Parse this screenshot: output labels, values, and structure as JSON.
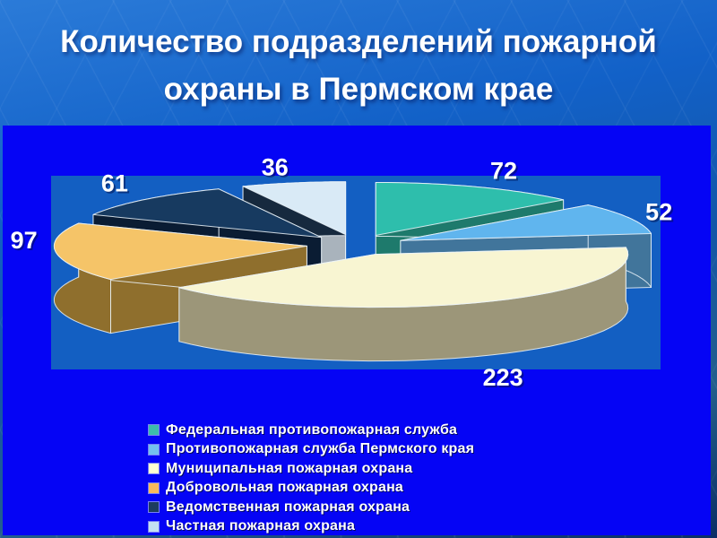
{
  "slide": {
    "title": "Количество подразделений пожарной охраны в Пермском крае"
  },
  "chart_data": {
    "type": "pie",
    "title": "Количество подразделений пожарной охраны в Пермском крае",
    "style": "3d-exploded-pie",
    "legend_position": "bottom-left",
    "data_labels": "values-outside",
    "background_colors": {
      "slide_blue": "#0504f5",
      "plot_blue": "#135fc2",
      "header_blue": "#1261c8"
    },
    "series": [
      {
        "label": "Федеральная противопожарная служба",
        "value": 72,
        "top_color": "#2ebeac",
        "side_color": "#1e7a6c",
        "legend_color": "#3dbcac"
      },
      {
        "label": "Противопожарная служба Пермского края",
        "value": 52,
        "top_color": "#60b5ee",
        "side_color": "#41759b",
        "legend_color": "#74c0ee"
      },
      {
        "label": "Муниципальная пожарная охрана",
        "value": 223,
        "top_color": "#f8f5d2",
        "side_color": "#9c9679",
        "legend_color": "#ffffd2"
      },
      {
        "label": "Добровольная пожарная охрана",
        "value": 97,
        "top_color": "#f5c468",
        "side_color": "#8f6f2d",
        "legend_color": "#f9ba5c"
      },
      {
        "label": "Ведомственная пожарная охрана",
        "value": 61,
        "top_color": "#173a60",
        "side_color": "#0a1c33",
        "legend_color": "#1c3c5e"
      },
      {
        "label": "Частная пожарная охрана",
        "value": 36,
        "top_color": "#d9eaf6",
        "side_color": "#16293e",
        "side_color_alt": "#a9b3bc",
        "legend_color": "#c4e0f2"
      }
    ]
  }
}
